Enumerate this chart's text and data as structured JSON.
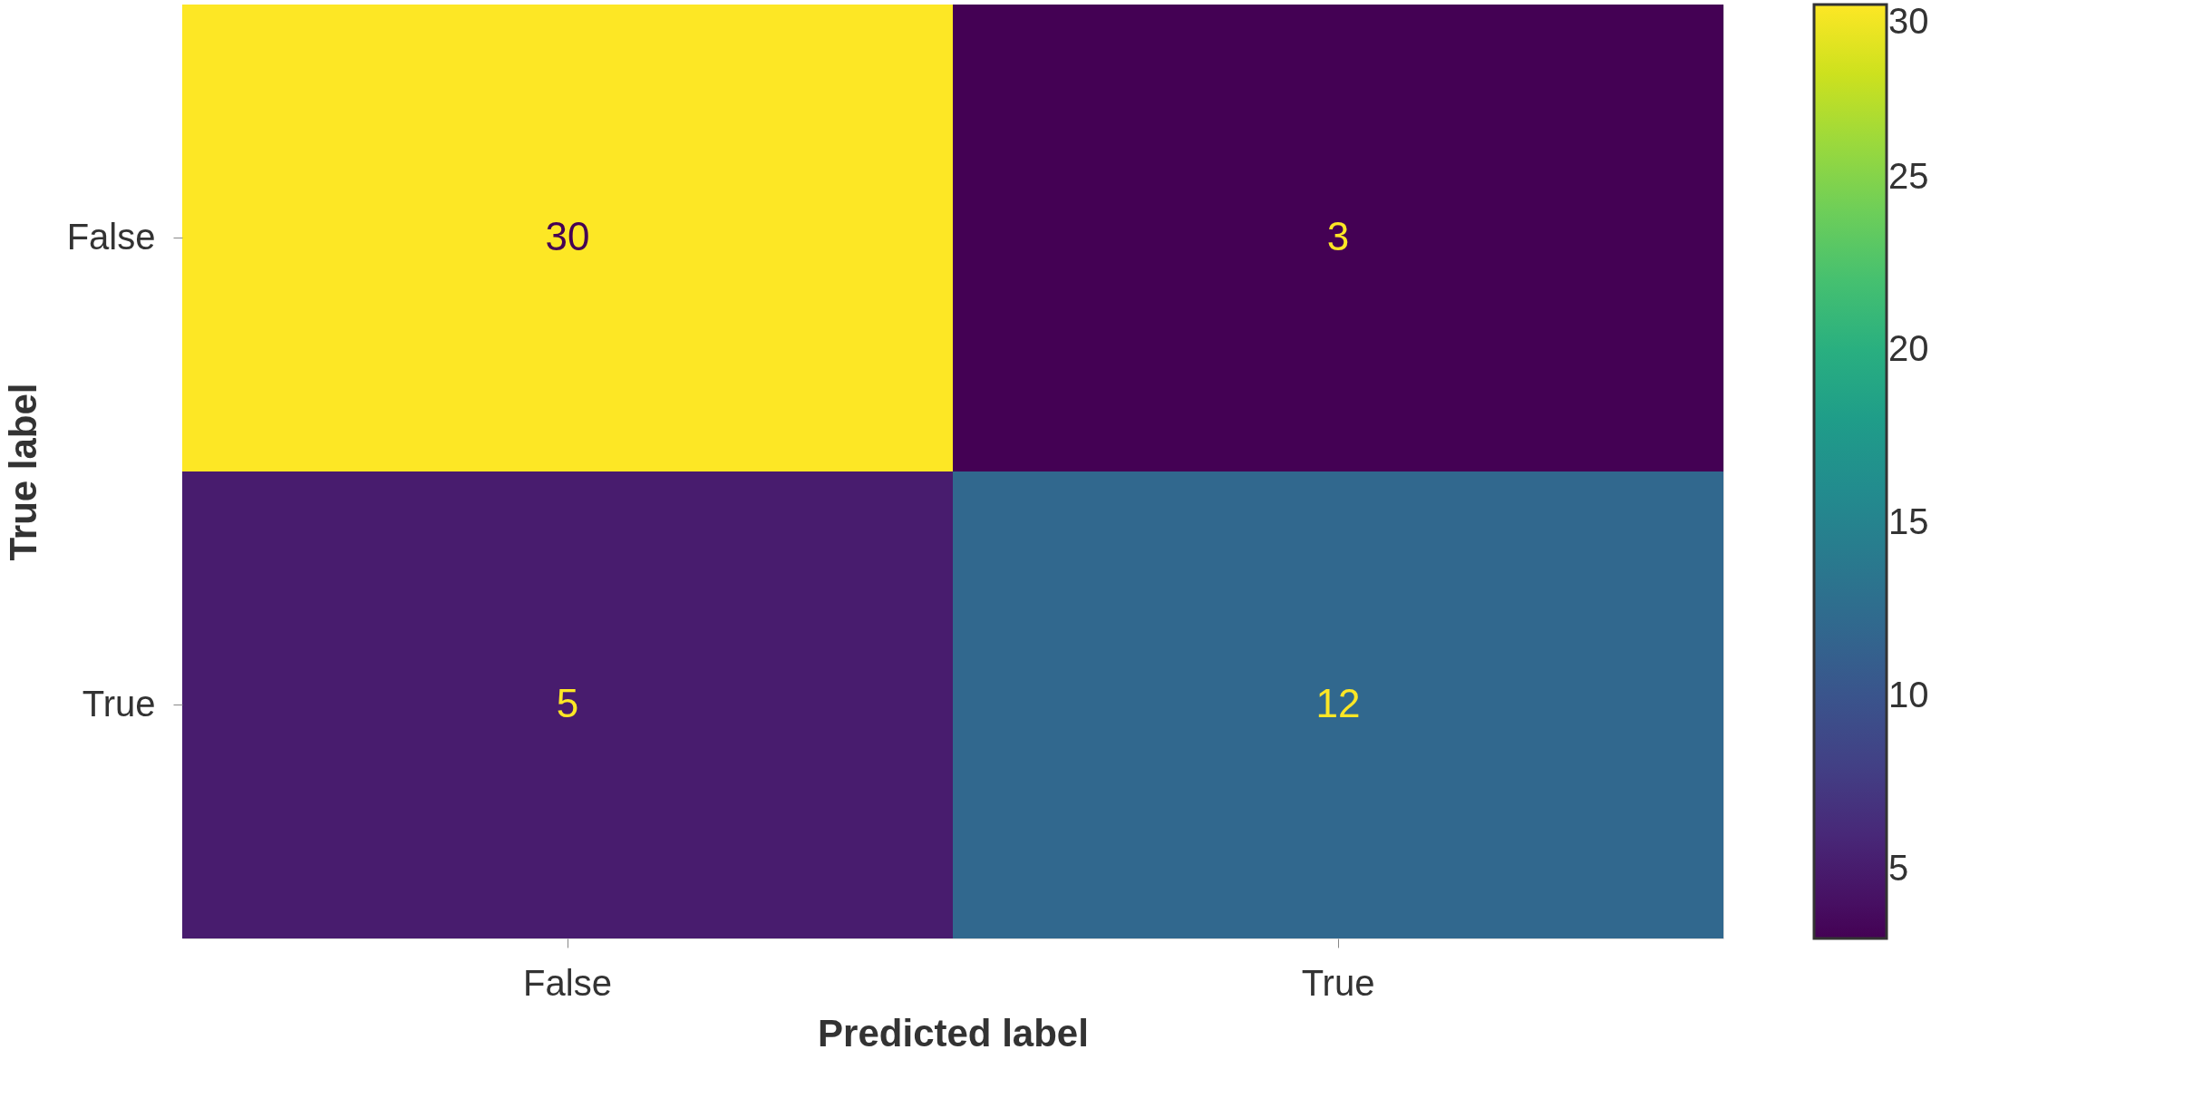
{
  "chart_data": {
    "type": "heatmap",
    "xlabel": "Predicted label",
    "ylabel": "True label",
    "categories": [
      "False",
      "True"
    ],
    "y_categories": [
      "False",
      "True"
    ],
    "cells": [
      [
        30,
        3
      ],
      [
        5,
        12
      ]
    ],
    "clim": [
      3,
      30
    ],
    "cticks": [
      5,
      10,
      15,
      20,
      25,
      30
    ],
    "data_labels": true,
    "grid": false
  }
}
